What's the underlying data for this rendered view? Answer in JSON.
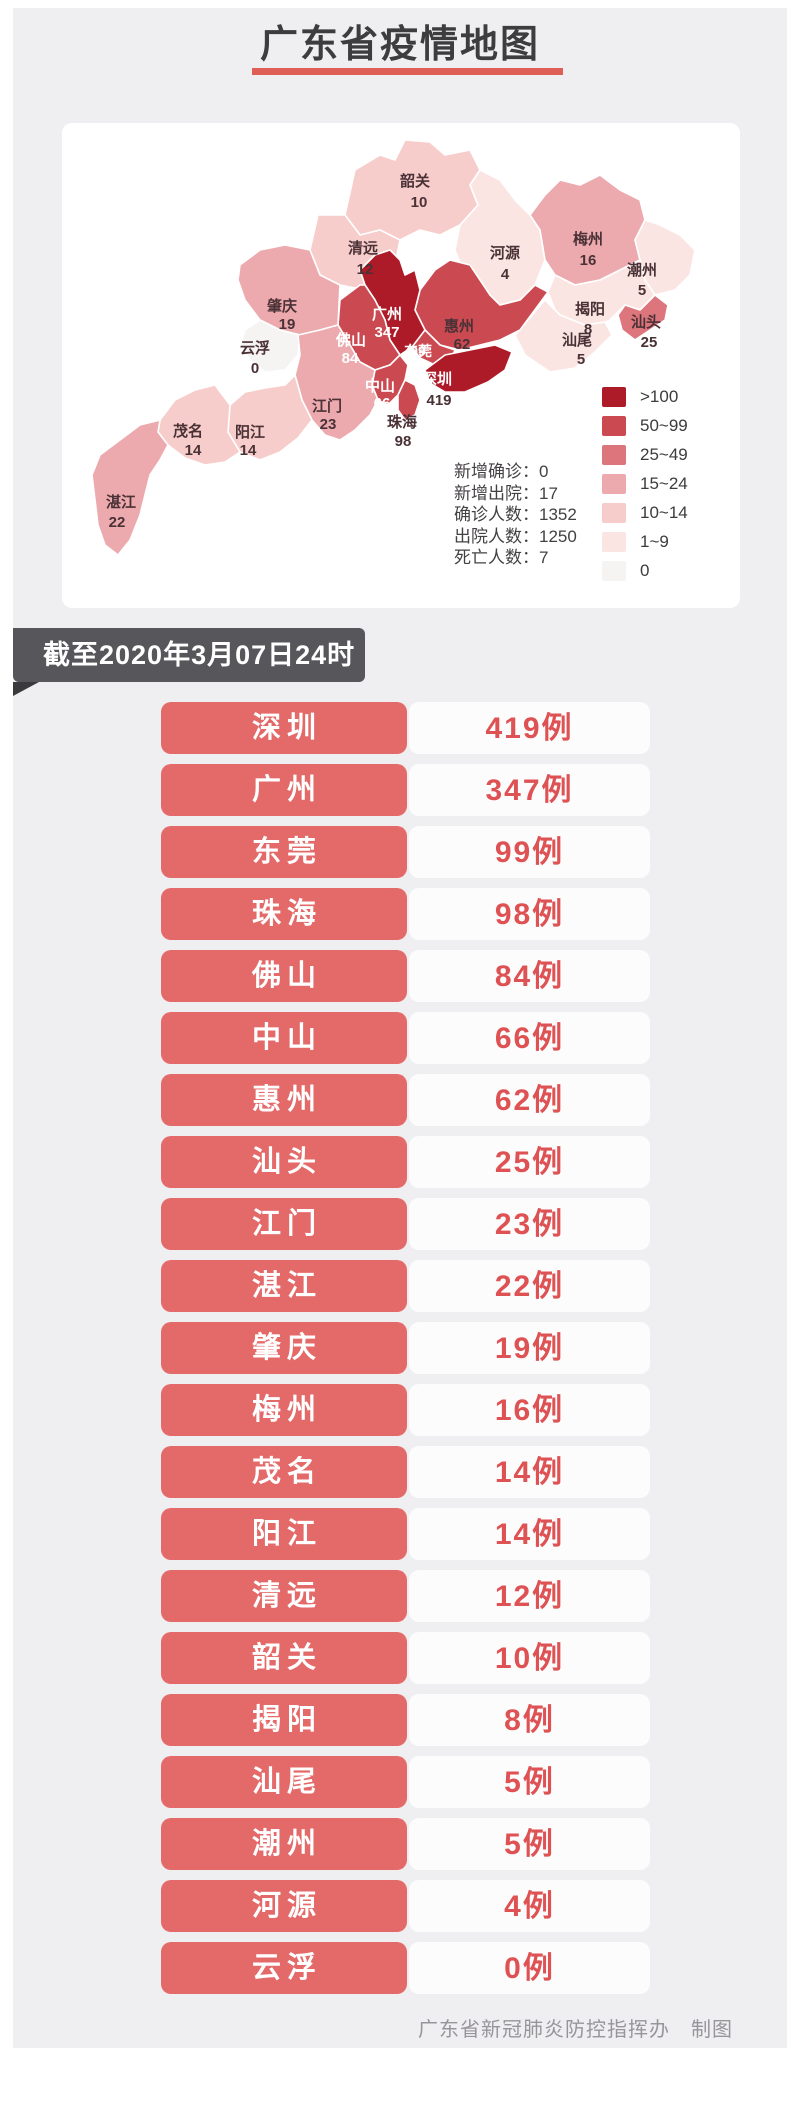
{
  "title": "广东省疫情地图",
  "date_banner": "截至2020年3月07日24时",
  "footer": "广东省新冠肺炎防控指挥办　制图",
  "colors": {
    "page_bg": "#efeef0",
    "accent_red": "#dd5f57",
    "pill_red": "#e46a6a",
    "case_number_red": "#de5254",
    "banner_dark": "#57565a"
  },
  "legend": {
    "items": [
      {
        "label": ">100",
        "color": "#ae1b28"
      },
      {
        "label": "50~99",
        "color": "#cb4a51"
      },
      {
        "label": "25~49",
        "color": "#dd767c"
      },
      {
        "label": "15~24",
        "color": "#ecaaae"
      },
      {
        "label": "10~14",
        "color": "#f6cdca"
      },
      {
        "label": "1~9",
        "color": "#fbe5e2"
      },
      {
        "label": "0",
        "color": "#f6f3f3"
      }
    ]
  },
  "stats": {
    "lines": [
      "新增确诊：0",
      "新增出院：17",
      "确诊人数：1352",
      "出院人数：1250",
      "死亡人数：7"
    ]
  },
  "map": {
    "cities": {
      "shaoguan": {
        "name": "韶关",
        "value": "10",
        "color": "#f6cdca"
      },
      "qingyuan": {
        "name": "清远",
        "value": "12",
        "color": "#f6cdca"
      },
      "heyuan": {
        "name": "河源",
        "value": "4",
        "color": "#fbe5e2"
      },
      "meizhou": {
        "name": "梅州",
        "value": "16",
        "color": "#ecaaae"
      },
      "chaozhou": {
        "name": "潮州",
        "value": "5",
        "color": "#fbe5e2"
      },
      "jieyang": {
        "name": "揭阳",
        "value": "8",
        "color": "#fbe5e2"
      },
      "shantou": {
        "name": "汕头",
        "value": "25",
        "color": "#dd767c"
      },
      "shanwei": {
        "name": "汕尾",
        "value": "5",
        "color": "#fbe5e2"
      },
      "huizhou": {
        "name": "惠州",
        "value": "62",
        "color": "#cb4a51"
      },
      "guangzhou": {
        "name": "广州",
        "value": "347",
        "color": "#ae1b28"
      },
      "dongguan": {
        "name": "东莞",
        "value": "99",
        "color": "#cb4a51"
      },
      "shenzhen": {
        "name": "深圳",
        "value": "419",
        "color": "#ae1b28"
      },
      "foshan": {
        "name": "佛山",
        "value": "84",
        "color": "#cb4a51"
      },
      "zhongshan": {
        "name": "中山",
        "value": "66",
        "color": "#cb4a51"
      },
      "zhuhai": {
        "name": "珠海",
        "value": "98",
        "color": "#cb4a51"
      },
      "zhaoqing": {
        "name": "肇庆",
        "value": "19",
        "color": "#ecaaae"
      },
      "yunfu": {
        "name": "云浮",
        "value": "0",
        "color": "#f6f3f3"
      },
      "jiangmen": {
        "name": "江门",
        "value": "23",
        "color": "#ecaaae"
      },
      "yangjiang": {
        "name": "阳江",
        "value": "14",
        "color": "#f6cdca"
      },
      "maoming": {
        "name": "茂名",
        "value": "14",
        "color": "#f6cdca"
      },
      "zhanjiang": {
        "name": "湛江",
        "value": "22",
        "color": "#ecaaae"
      }
    }
  },
  "table": {
    "rows": [
      {
        "city": "深圳",
        "cases": "419例"
      },
      {
        "city": "广州",
        "cases": "347例"
      },
      {
        "city": "东莞",
        "cases": "99例"
      },
      {
        "city": "珠海",
        "cases": "98例"
      },
      {
        "city": "佛山",
        "cases": "84例"
      },
      {
        "city": "中山",
        "cases": "66例"
      },
      {
        "city": "惠州",
        "cases": "62例"
      },
      {
        "city": "汕头",
        "cases": "25例"
      },
      {
        "city": "江门",
        "cases": "23例"
      },
      {
        "city": "湛江",
        "cases": "22例"
      },
      {
        "city": "肇庆",
        "cases": "19例"
      },
      {
        "city": "梅州",
        "cases": "16例"
      },
      {
        "city": "茂名",
        "cases": "14例"
      },
      {
        "city": "阳江",
        "cases": "14例"
      },
      {
        "city": "清远",
        "cases": "12例"
      },
      {
        "city": "韶关",
        "cases": "10例"
      },
      {
        "city": "揭阳",
        "cases": "8例"
      },
      {
        "city": "汕尾",
        "cases": "5例"
      },
      {
        "city": "潮州",
        "cases": "5例"
      },
      {
        "city": "河源",
        "cases": "4例"
      },
      {
        "city": "云浮",
        "cases": "0例"
      }
    ]
  }
}
